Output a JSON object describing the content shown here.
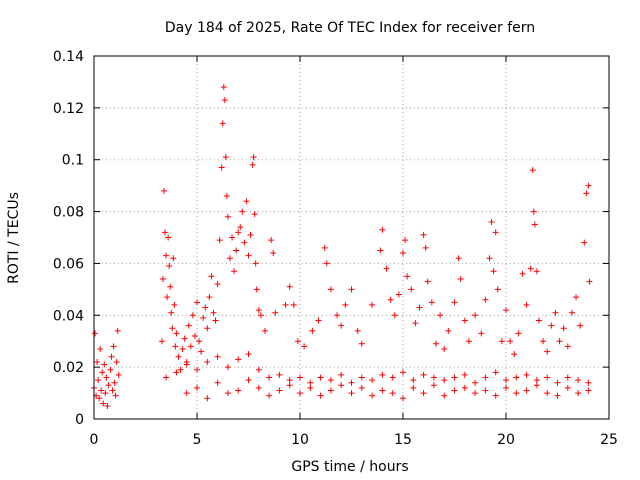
{
  "chart_data": {
    "type": "scatter",
    "title": "Day 184 of 2025, Rate Of TEC Index for receiver fern",
    "xlabel": "GPS time / hours",
    "ylabel": "ROTI / TECUs",
    "xlim": [
      0,
      25
    ],
    "ylim": [
      0,
      0.14
    ],
    "xticks": [
      0,
      5,
      10,
      15,
      20,
      25
    ],
    "xtick_labels": [
      "0",
      "5",
      "10",
      "15",
      "20",
      "25"
    ],
    "yticks": [
      0,
      0.02,
      0.04,
      0.06,
      0.08,
      0.1,
      0.12,
      0.14
    ],
    "ytick_labels": [
      "0",
      "0.02",
      "0.04",
      "0.06",
      "0.08",
      "0.1",
      "0.12",
      "0.14"
    ],
    "grid": true,
    "marker": "+",
    "series": [
      {
        "color": "#ff0000",
        "points": [
          [
            0.0,
            0.012
          ],
          [
            0.05,
            0.033
          ],
          [
            0.1,
            0.009
          ],
          [
            0.15,
            0.022
          ],
          [
            0.2,
            0.015
          ],
          [
            0.25,
            0.008
          ],
          [
            0.3,
            0.027
          ],
          [
            0.35,
            0.011
          ],
          [
            0.4,
            0.018
          ],
          [
            0.45,
            0.006
          ],
          [
            0.5,
            0.021
          ],
          [
            0.55,
            0.01
          ],
          [
            0.6,
            0.016
          ],
          [
            0.65,
            0.005
          ],
          [
            0.7,
            0.013
          ],
          [
            0.8,
            0.019
          ],
          [
            0.85,
            0.024
          ],
          [
            0.9,
            0.011
          ],
          [
            0.95,
            0.028
          ],
          [
            1.0,
            0.014
          ],
          [
            1.05,
            0.009
          ],
          [
            1.1,
            0.022
          ],
          [
            1.15,
            0.034
          ],
          [
            1.2,
            0.017
          ],
          [
            3.3,
            0.03
          ],
          [
            3.35,
            0.054
          ],
          [
            3.4,
            0.088
          ],
          [
            3.45,
            0.072
          ],
          [
            3.5,
            0.063
          ],
          [
            3.55,
            0.047
          ],
          [
            3.6,
            0.07
          ],
          [
            3.65,
            0.059
          ],
          [
            3.7,
            0.051
          ],
          [
            3.75,
            0.041
          ],
          [
            3.8,
            0.035
          ],
          [
            3.85,
            0.062
          ],
          [
            3.9,
            0.044
          ],
          [
            3.95,
            0.028
          ],
          [
            4.0,
            0.033
          ],
          [
            4.1,
            0.024
          ],
          [
            4.2,
            0.019
          ],
          [
            4.3,
            0.027
          ],
          [
            4.4,
            0.031
          ],
          [
            4.5,
            0.022
          ],
          [
            4.6,
            0.036
          ],
          [
            4.7,
            0.028
          ],
          [
            4.8,
            0.04
          ],
          [
            4.9,
            0.032
          ],
          [
            5.0,
            0.045
          ],
          [
            5.1,
            0.03
          ],
          [
            5.2,
            0.026
          ],
          [
            5.3,
            0.039
          ],
          [
            5.4,
            0.043
          ],
          [
            5.5,
            0.035
          ],
          [
            5.6,
            0.047
          ],
          [
            5.7,
            0.055
          ],
          [
            5.8,
            0.041
          ],
          [
            5.9,
            0.038
          ],
          [
            6.0,
            0.052
          ],
          [
            6.1,
            0.069
          ],
          [
            6.2,
            0.097
          ],
          [
            6.25,
            0.114
          ],
          [
            6.3,
            0.128
          ],
          [
            6.35,
            0.123
          ],
          [
            6.4,
            0.101
          ],
          [
            6.45,
            0.086
          ],
          [
            6.5,
            0.078
          ],
          [
            6.6,
            0.062
          ],
          [
            6.7,
            0.07
          ],
          [
            6.8,
            0.057
          ],
          [
            6.9,
            0.065
          ],
          [
            7.0,
            0.072
          ],
          [
            7.1,
            0.074
          ],
          [
            7.2,
            0.08
          ],
          [
            7.3,
            0.068
          ],
          [
            7.4,
            0.084
          ],
          [
            7.5,
            0.063
          ],
          [
            7.6,
            0.071
          ],
          [
            7.7,
            0.098
          ],
          [
            7.75,
            0.101
          ],
          [
            7.8,
            0.079
          ],
          [
            7.85,
            0.06
          ],
          [
            7.9,
            0.05
          ],
          [
            8.0,
            0.042
          ],
          [
            8.1,
            0.04
          ],
          [
            8.3,
            0.034
          ],
          [
            8.6,
            0.069
          ],
          [
            8.7,
            0.064
          ],
          [
            8.8,
            0.041
          ],
          [
            9.3,
            0.044
          ],
          [
            9.5,
            0.051
          ],
          [
            9.7,
            0.044
          ],
          [
            9.9,
            0.03
          ],
          [
            10.2,
            0.028
          ],
          [
            10.6,
            0.034
          ],
          [
            10.9,
            0.038
          ],
          [
            11.2,
            0.066
          ],
          [
            11.3,
            0.06
          ],
          [
            11.5,
            0.05
          ],
          [
            11.8,
            0.04
          ],
          [
            12.0,
            0.036
          ],
          [
            12.2,
            0.044
          ],
          [
            12.5,
            0.05
          ],
          [
            12.8,
            0.034
          ],
          [
            13.0,
            0.029
          ],
          [
            13.5,
            0.044
          ],
          [
            13.9,
            0.065
          ],
          [
            14.0,
            0.073
          ],
          [
            14.2,
            0.058
          ],
          [
            14.4,
            0.046
          ],
          [
            14.6,
            0.04
          ],
          [
            14.8,
            0.048
          ],
          [
            15.0,
            0.064
          ],
          [
            15.1,
            0.069
          ],
          [
            15.2,
            0.055
          ],
          [
            15.4,
            0.05
          ],
          [
            15.6,
            0.037
          ],
          [
            15.8,
            0.043
          ],
          [
            16.0,
            0.071
          ],
          [
            16.1,
            0.066
          ],
          [
            16.2,
            0.053
          ],
          [
            16.4,
            0.045
          ],
          [
            16.6,
            0.029
          ],
          [
            16.8,
            0.04
          ],
          [
            17.0,
            0.027
          ],
          [
            17.2,
            0.034
          ],
          [
            17.5,
            0.045
          ],
          [
            17.7,
            0.062
          ],
          [
            17.8,
            0.054
          ],
          [
            18.0,
            0.038
          ],
          [
            18.2,
            0.03
          ],
          [
            18.5,
            0.04
          ],
          [
            18.8,
            0.033
          ],
          [
            19.0,
            0.046
          ],
          [
            19.2,
            0.062
          ],
          [
            19.3,
            0.076
          ],
          [
            19.4,
            0.057
          ],
          [
            19.5,
            0.072
          ],
          [
            19.6,
            0.05
          ],
          [
            19.8,
            0.03
          ],
          [
            20.0,
            0.042
          ],
          [
            20.2,
            0.03
          ],
          [
            20.4,
            0.025
          ],
          [
            20.6,
            0.033
          ],
          [
            20.8,
            0.056
          ],
          [
            21.0,
            0.044
          ],
          [
            21.2,
            0.058
          ],
          [
            21.3,
            0.096
          ],
          [
            21.35,
            0.08
          ],
          [
            21.4,
            0.075
          ],
          [
            21.5,
            0.057
          ],
          [
            21.6,
            0.038
          ],
          [
            21.8,
            0.03
          ],
          [
            22.0,
            0.026
          ],
          [
            22.2,
            0.036
          ],
          [
            22.4,
            0.041
          ],
          [
            22.6,
            0.03
          ],
          [
            22.8,
            0.035
          ],
          [
            23.0,
            0.028
          ],
          [
            23.2,
            0.041
          ],
          [
            23.4,
            0.047
          ],
          [
            23.6,
            0.036
          ],
          [
            23.8,
            0.068
          ],
          [
            23.9,
            0.087
          ],
          [
            24.0,
            0.09
          ],
          [
            24.05,
            0.053
          ],
          [
            4.5,
            0.01
          ],
          [
            5.0,
            0.012
          ],
          [
            5.5,
            0.008
          ],
          [
            6.0,
            0.014
          ],
          [
            6.5,
            0.01
          ],
          [
            7.0,
            0.011
          ],
          [
            7.5,
            0.015
          ],
          [
            8.0,
            0.012
          ],
          [
            8.5,
            0.009
          ],
          [
            9.0,
            0.011
          ],
          [
            9.5,
            0.013
          ],
          [
            10.0,
            0.01
          ],
          [
            10.5,
            0.012
          ],
          [
            11.0,
            0.009
          ],
          [
            11.5,
            0.011
          ],
          [
            12.0,
            0.013
          ],
          [
            12.5,
            0.01
          ],
          [
            13.0,
            0.012
          ],
          [
            13.5,
            0.009
          ],
          [
            14.0,
            0.011
          ],
          [
            14.5,
            0.01
          ],
          [
            15.0,
            0.008
          ],
          [
            15.5,
            0.012
          ],
          [
            16.0,
            0.01
          ],
          [
            16.5,
            0.013
          ],
          [
            17.0,
            0.009
          ],
          [
            17.5,
            0.011
          ],
          [
            18.0,
            0.012
          ],
          [
            18.5,
            0.01
          ],
          [
            19.0,
            0.011
          ],
          [
            19.5,
            0.009
          ],
          [
            20.0,
            0.012
          ],
          [
            20.5,
            0.01
          ],
          [
            21.0,
            0.011
          ],
          [
            21.5,
            0.013
          ],
          [
            22.0,
            0.01
          ],
          [
            22.5,
            0.009
          ],
          [
            23.0,
            0.012
          ],
          [
            23.5,
            0.01
          ],
          [
            24.0,
            0.011
          ],
          [
            3.5,
            0.016
          ],
          [
            4.0,
            0.018
          ],
          [
            4.5,
            0.021
          ],
          [
            5.0,
            0.019
          ],
          [
            5.5,
            0.022
          ],
          [
            6.0,
            0.024
          ],
          [
            6.5,
            0.02
          ],
          [
            7.0,
            0.023
          ],
          [
            7.5,
            0.025
          ],
          [
            8.0,
            0.019
          ],
          [
            8.5,
            0.016
          ],
          [
            9.0,
            0.017
          ],
          [
            9.5,
            0.015
          ],
          [
            10.0,
            0.016
          ],
          [
            10.5,
            0.014
          ],
          [
            11.0,
            0.016
          ],
          [
            11.5,
            0.015
          ],
          [
            12.0,
            0.017
          ],
          [
            12.5,
            0.014
          ],
          [
            13.0,
            0.016
          ],
          [
            13.5,
            0.015
          ],
          [
            14.0,
            0.017
          ],
          [
            14.5,
            0.016
          ],
          [
            15.0,
            0.018
          ],
          [
            15.5,
            0.015
          ],
          [
            16.0,
            0.017
          ],
          [
            16.5,
            0.016
          ],
          [
            17.0,
            0.015
          ],
          [
            17.5,
            0.016
          ],
          [
            18.0,
            0.017
          ],
          [
            18.5,
            0.014
          ],
          [
            19.0,
            0.016
          ],
          [
            19.5,
            0.018
          ],
          [
            20.0,
            0.015
          ],
          [
            20.5,
            0.016
          ],
          [
            21.0,
            0.017
          ],
          [
            21.5,
            0.015
          ],
          [
            22.0,
            0.016
          ],
          [
            22.5,
            0.014
          ],
          [
            23.0,
            0.016
          ],
          [
            23.5,
            0.015
          ],
          [
            24.0,
            0.014
          ]
        ]
      }
    ]
  }
}
